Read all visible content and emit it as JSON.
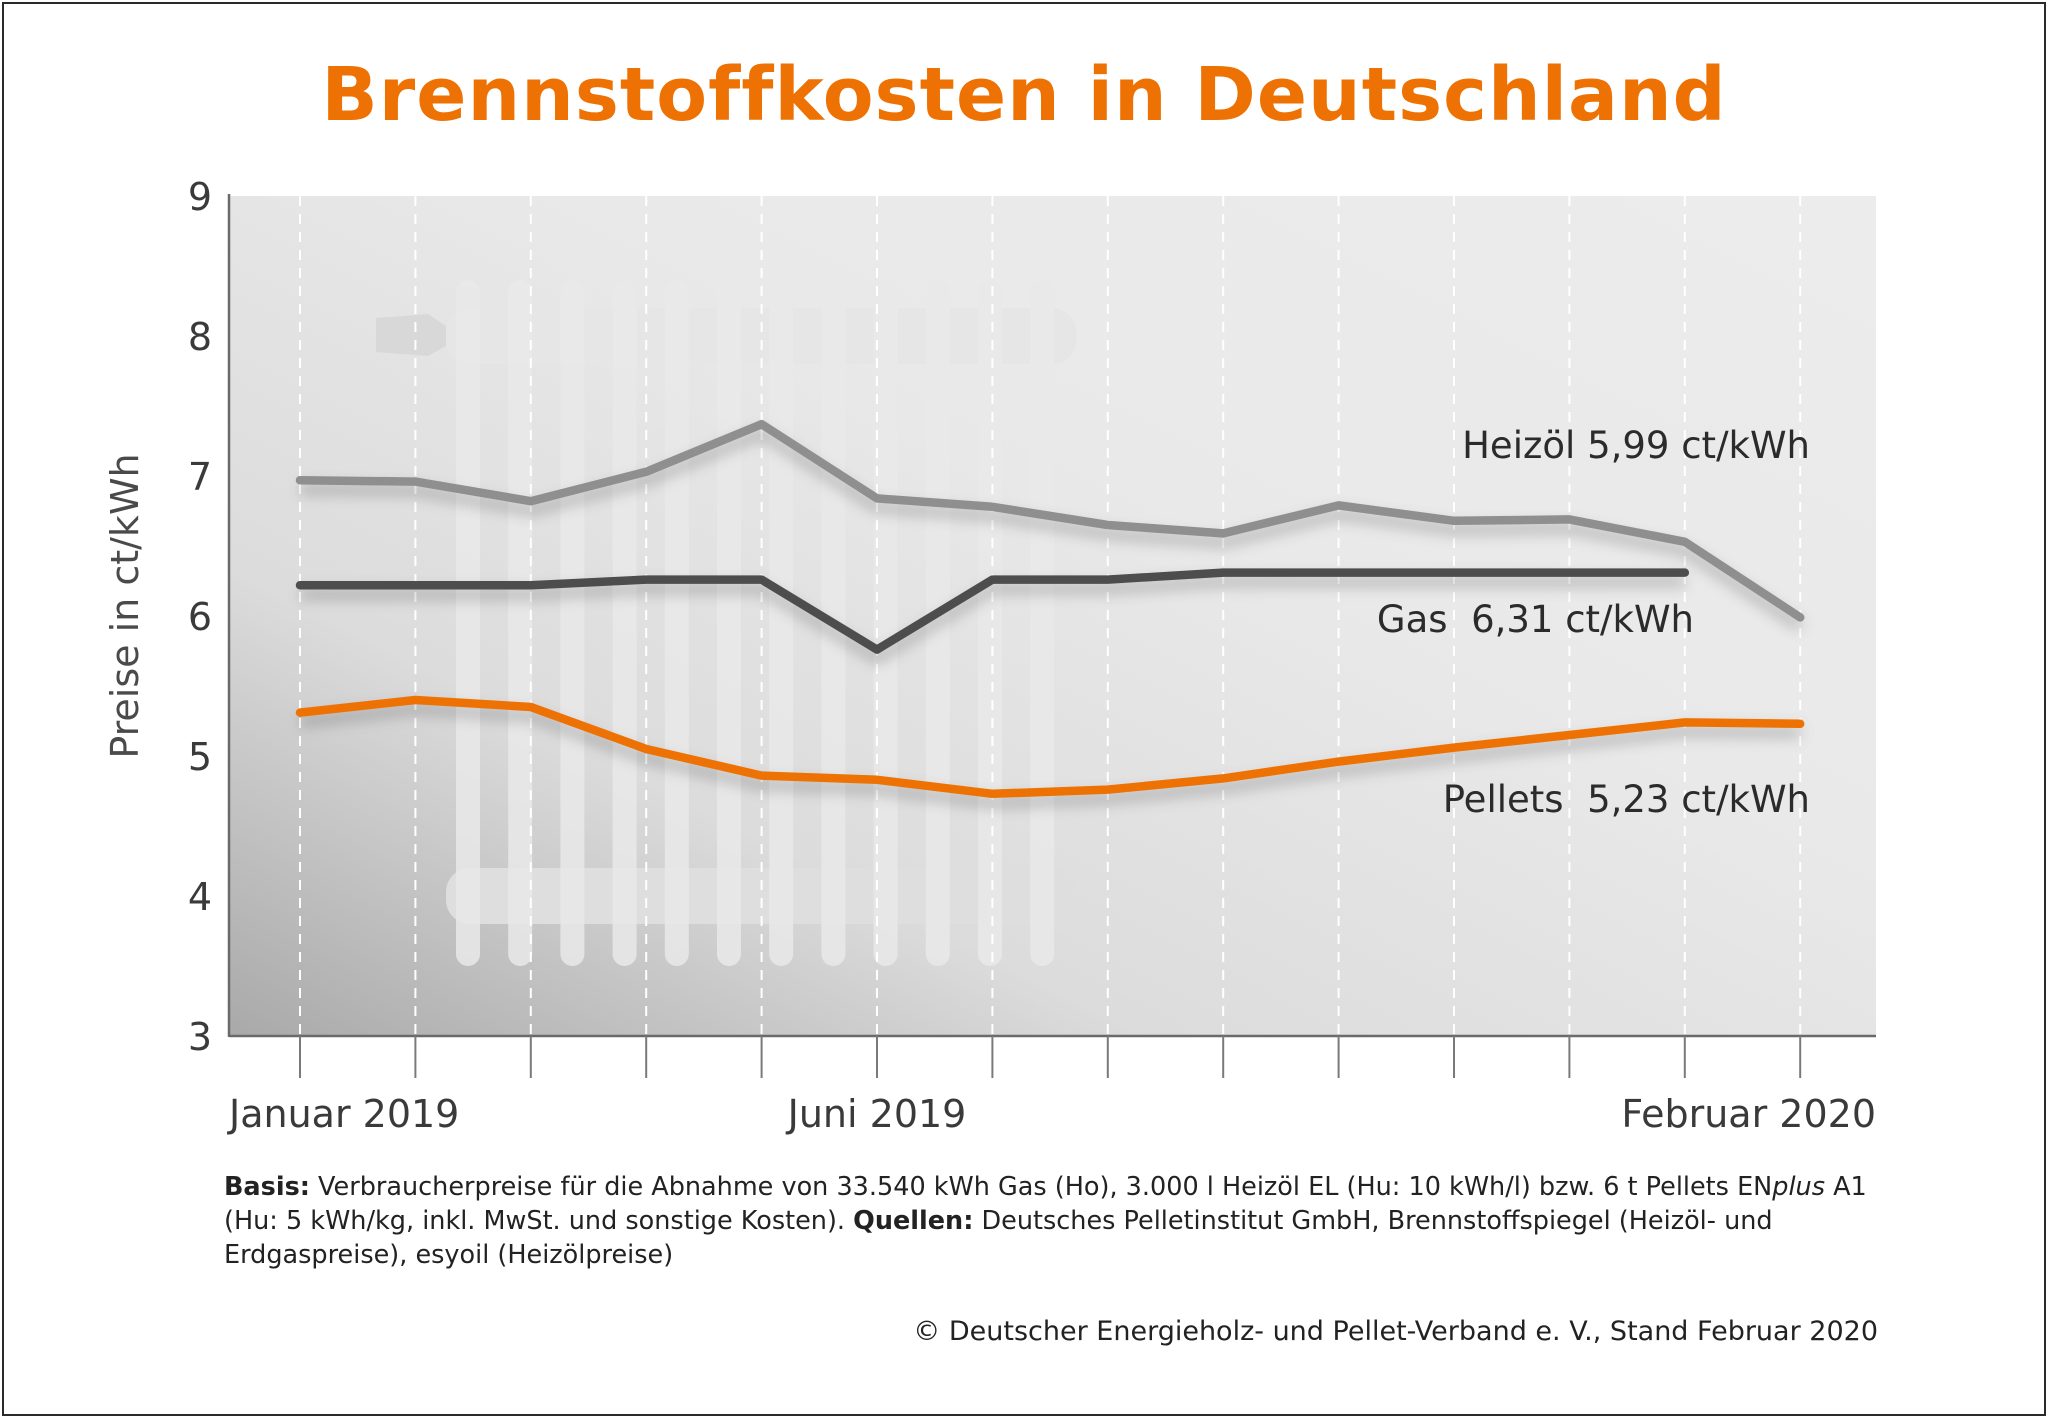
{
  "title": "Brennstoffkosten in Deutschland",
  "chart_data": {
    "type": "line",
    "title": "Brennstoffkosten in Deutschland",
    "ylabel": "Preise in ct/kWh",
    "xlabel": "",
    "ylim": [
      3,
      9
    ],
    "yticks": [
      "3",
      "4",
      "5",
      "6",
      "7",
      "8",
      "9"
    ],
    "x": [
      "2019-01",
      "2019-02",
      "2019-03",
      "2019-04",
      "2019-05",
      "2019-06",
      "2019-07",
      "2019-08",
      "2019-09",
      "2019-10",
      "2019-11",
      "2019-12",
      "2020-01",
      "2020-02"
    ],
    "x_tick_labels": [
      {
        "index": 0,
        "label": "Januar 2019"
      },
      {
        "index": 5,
        "label": "Juni 2019"
      },
      {
        "index": 13,
        "label": "Februar 2020"
      }
    ],
    "grid": "vertical dashed",
    "series": [
      {
        "label": "Heizöl 5,99 ct/kWh",
        "color": "#8f8f8f",
        "values": [
          6.97,
          6.96,
          6.82,
          7.03,
          7.37,
          6.84,
          6.78,
          6.65,
          6.59,
          6.79,
          6.68,
          6.69,
          6.53,
          5.99
        ]
      },
      {
        "label": "Gas  6,31 ct/kWh",
        "color": "#4d4d4d",
        "values": [
          6.22,
          6.22,
          6.22,
          6.26,
          6.26,
          5.76,
          6.26,
          6.26,
          6.31,
          6.31,
          6.31,
          6.31,
          6.31,
          null
        ]
      },
      {
        "label": "Pellets  5,23 ct/kWh",
        "color": "#ee7203",
        "values": [
          5.31,
          5.4,
          5.35,
          5.05,
          4.86,
          4.83,
          4.73,
          4.76,
          4.84,
          4.96,
          5.06,
          5.15,
          5.24,
          5.23
        ]
      }
    ]
  },
  "footer": {
    "basis_label": "Basis:",
    "basis_text_1": " Verbraucherpreise für die Abnahme von 33.540 kWh Gas (Ho), 3.000 l Heizöl EL (Hu: 10 kWh/l) bzw. 6 t Pellets EN",
    "basis_italic": "plus",
    "basis_text_2": " A1 (Hu: 5 kWh/kg, inkl. MwSt. und sonstige Kosten). ",
    "quellen_label": "Quellen:",
    "quellen_text": " Deutsches Pelletinstitut GmbH, Brennstoffspiegel (Heizöl- und Erdgaspreise), esyoil (Heizölpreise)",
    "copyright": "© Deutscher Energieholz- und Pellet-Verband e. V., Stand Februar 2020"
  }
}
